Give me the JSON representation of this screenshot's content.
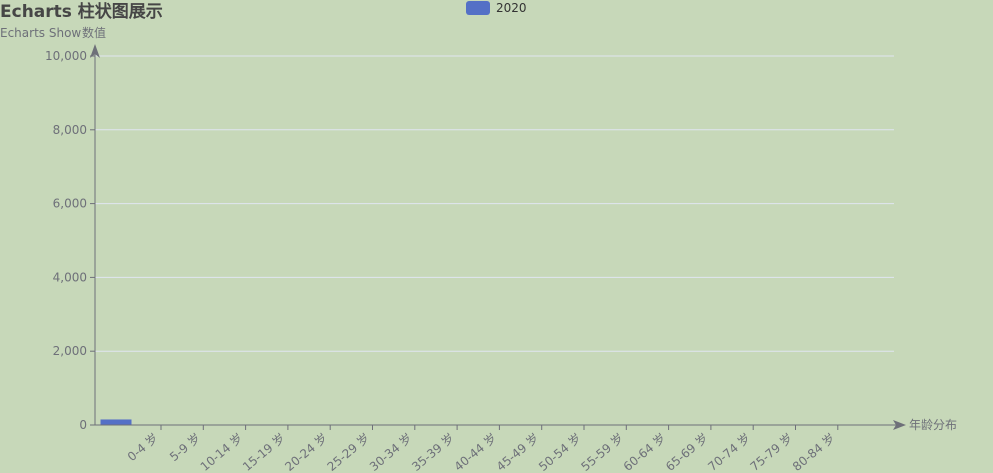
{
  "title": "Echarts 柱状图展示",
  "subtitle": "Echarts Show",
  "legend": {
    "label": "2020"
  },
  "colors": {
    "bar": "#5470c6",
    "axis": "#6e7079",
    "grid": "#e0e6f1",
    "background": "#c7d8b9"
  },
  "chart_data": {
    "type": "bar",
    "title": "Echarts 柱状图展示",
    "subtitle": "Echarts Show",
    "xlabel": "年龄分布",
    "ylabel": "数值",
    "categories": [
      "0-4 岁",
      "5-9 岁",
      "10-14 岁",
      "15-19 岁",
      "20-24 岁",
      "25-29 岁",
      "30-34 岁",
      "35-39 岁",
      "40-44 岁",
      "45-49 岁",
      "50-54 岁",
      "55-59 岁",
      "60-64 岁",
      "65-69 岁",
      "70-74 岁",
      "75-79 岁",
      "80-84 岁"
    ],
    "series": [
      {
        "name": "2020",
        "values": [
          150,
          0,
          0,
          0,
          0,
          0,
          0,
          0,
          0,
          0,
          0,
          0,
          0,
          0,
          0,
          0,
          0
        ]
      }
    ],
    "yticks": [
      0,
      2000,
      4000,
      6000,
      8000,
      10000
    ],
    "ytick_labels": [
      "0",
      "2,000",
      "4,000",
      "6,000",
      "8,000",
      "10,000"
    ],
    "ylim": [
      0,
      10000
    ],
    "grid": true,
    "legend_position": "top-center"
  }
}
